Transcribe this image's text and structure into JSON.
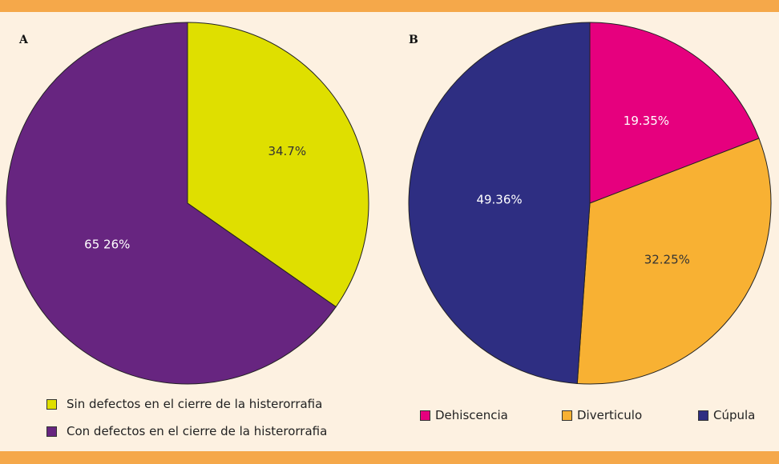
{
  "chart_data": [
    {
      "type": "pie",
      "panel_label": "A",
      "slices": [
        {
          "label": "Sin defectos en el cierre de la histerorrafia",
          "value": 34.7,
          "value_label": "34.7%",
          "color": "#dfdf00",
          "text_color": "#333333"
        },
        {
          "label": "Con defectos en el cierre de la histerorrafia",
          "value": 65.26,
          "value_label": "65 26%",
          "color": "#672580",
          "text_color": "#ffffff"
        }
      ],
      "legend": "bottom-left"
    },
    {
      "type": "pie",
      "panel_label": "B",
      "slices": [
        {
          "label": "Dehiscencia",
          "value": 19.35,
          "value_label": "19.35%",
          "color": "#e6007e",
          "text_color": "#ffffff"
        },
        {
          "label": "Diverticulo",
          "value": 32.25,
          "value_label": "32.25%",
          "color": "#f8b133",
          "text_color": "#333333"
        },
        {
          "label": "Cúpula",
          "value": 49.36,
          "value_label": "49.36%",
          "color": "#2e2e82",
          "text_color": "#ffffff"
        }
      ],
      "legend": "bottom"
    }
  ]
}
